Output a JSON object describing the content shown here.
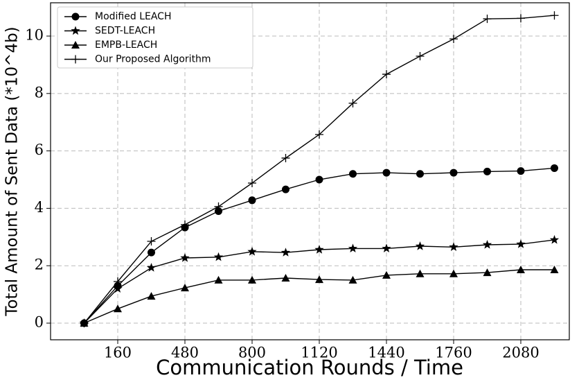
{
  "chart_data": {
    "type": "line",
    "x_label": "Communication Rounds / Time",
    "y_label": "Total Amount of Sent Data (*10^4b)",
    "x": [
      0,
      160,
      320,
      480,
      640,
      800,
      960,
      1120,
      1280,
      1440,
      1600,
      1760,
      1920,
      2080,
      2240
    ],
    "series": [
      {
        "name": "Modified LEACH",
        "color": "#000000",
        "marker": "circle",
        "values": [
          0,
          1.3,
          2.46,
          3.33,
          3.9,
          4.28,
          4.66,
          5.0,
          5.2,
          5.24,
          5.2,
          5.24,
          5.28,
          5.3,
          5.4
        ]
      },
      {
        "name": "SEDT-LEACH",
        "color": "#000000",
        "marker": "star",
        "values": [
          0,
          1.2,
          1.93,
          2.27,
          2.3,
          2.49,
          2.46,
          2.56,
          2.6,
          2.6,
          2.68,
          2.65,
          2.73,
          2.75,
          2.9
        ]
      },
      {
        "name": "EMPB-LEACH",
        "color": "#000000",
        "marker": "triangle",
        "values": [
          0,
          0.5,
          0.94,
          1.23,
          1.5,
          1.5,
          1.57,
          1.52,
          1.5,
          1.67,
          1.72,
          1.72,
          1.76,
          1.86,
          1.86
        ]
      },
      {
        "name": "Our Proposed Algorithm",
        "color": "#000000",
        "marker": "plus",
        "values": [
          0,
          1.45,
          2.85,
          3.43,
          4.06,
          4.88,
          5.75,
          6.57,
          7.66,
          8.67,
          9.3,
          9.9,
          10.6,
          10.62,
          10.72
        ]
      }
    ],
    "xlim": [
      -160,
      2311
    ],
    "ylim": [
      -0.58,
      11.16
    ],
    "xticks": [
      160,
      480,
      800,
      1120,
      1440,
      1760,
      2080
    ],
    "yticks": [
      0,
      2,
      4,
      6,
      8,
      10
    ],
    "grid": true,
    "legend": "upper-left"
  }
}
